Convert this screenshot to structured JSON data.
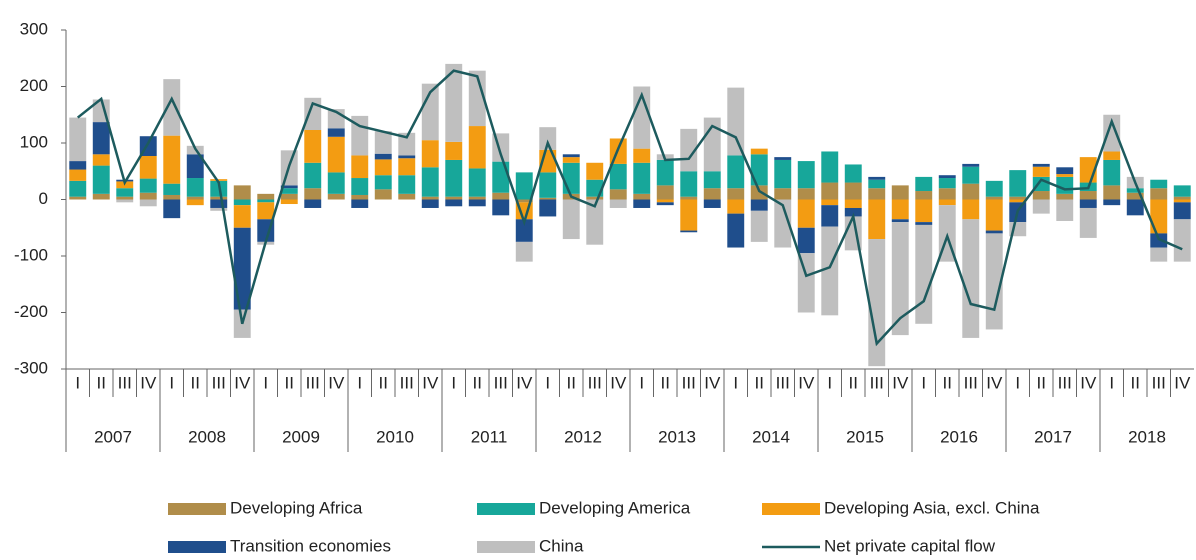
{
  "chart_data": {
    "type": "bar",
    "stacked": true,
    "categories": [
      "I",
      "II",
      "III",
      "IV",
      "I",
      "II",
      "III",
      "IV",
      "I",
      "II",
      "III",
      "IV",
      "I",
      "II",
      "III",
      "IV",
      "I",
      "II",
      "III",
      "IV",
      "I",
      "II",
      "III",
      "IV",
      "I",
      "II",
      "III",
      "IV",
      "I",
      "II",
      "III",
      "IV",
      "I",
      "II",
      "III",
      "IV",
      "I",
      "II",
      "III",
      "IV",
      "I",
      "II",
      "III",
      "IV",
      "I",
      "II",
      "III",
      "IV"
    ],
    "years": [
      "2007",
      "2008",
      "2009",
      "2010",
      "2011",
      "2012",
      "2013",
      "2014",
      "2015",
      "2016",
      "2017",
      "2018"
    ],
    "ylim": [
      -300,
      300
    ],
    "yticks": [
      -300,
      -200,
      -100,
      0,
      100,
      200,
      300
    ],
    "series": [
      {
        "name": "Developing Africa",
        "color": "#b08d4a",
        "values": [
          5,
          10,
          5,
          12,
          8,
          5,
          5,
          25,
          10,
          10,
          20,
          10,
          8,
          18,
          10,
          5,
          5,
          5,
          12,
          -5,
          3,
          10,
          5,
          18,
          10,
          25,
          5,
          20,
          20,
          25,
          20,
          20,
          30,
          30,
          20,
          25,
          15,
          20,
          28,
          5,
          5,
          15,
          10,
          15,
          25,
          12,
          20,
          5
        ]
      },
      {
        "name": "Developing America",
        "color": "#17a79a",
        "values": [
          28,
          50,
          15,
          25,
          20,
          33,
          28,
          -10,
          -5,
          10,
          45,
          38,
          30,
          25,
          33,
          52,
          65,
          50,
          55,
          48,
          45,
          55,
          30,
          45,
          55,
          45,
          45,
          30,
          58,
          55,
          50,
          48,
          55,
          32,
          15,
          0,
          25,
          18,
          30,
          28,
          47,
          25,
          30,
          15,
          45,
          8,
          15,
          20
        ]
      },
      {
        "name": "Developing Asia, excl. China",
        "color": "#f39c12",
        "values": [
          20,
          20,
          12,
          40,
          85,
          -10,
          3,
          -40,
          -30,
          -8,
          58,
          63,
          40,
          28,
          30,
          48,
          32,
          75,
          0,
          -30,
          40,
          10,
          30,
          45,
          25,
          -5,
          -55,
          0,
          -25,
          10,
          0,
          -50,
          -10,
          -15,
          -70,
          -35,
          -40,
          -10,
          -35,
          -55,
          -5,
          18,
          5,
          45,
          15,
          0,
          -60,
          -5
        ]
      },
      {
        "name": "Transition economies",
        "color": "#1f4e8c",
        "values": [
          15,
          57,
          3,
          35,
          -33,
          42,
          -15,
          -145,
          -40,
          5,
          -15,
          15,
          -15,
          10,
          5,
          -15,
          -12,
          -12,
          -28,
          -40,
          -30,
          5,
          0,
          0,
          -15,
          -5,
          -3,
          -15,
          -60,
          -20,
          5,
          -45,
          -38,
          -15,
          5,
          -5,
          -5,
          5,
          5,
          -5,
          -35,
          5,
          12,
          -15,
          -10,
          -28,
          -25,
          -30
        ]
      },
      {
        "name": "China",
        "color": "#bfbfbf",
        "values": [
          77,
          40,
          -5,
          -12,
          100,
          15,
          -5,
          -50,
          -5,
          62,
          57,
          34,
          70,
          40,
          40,
          100,
          138,
          98,
          50,
          -35,
          40,
          -70,
          -80,
          -15,
          110,
          10,
          75,
          95,
          120,
          -55,
          -85,
          -105,
          -157,
          -60,
          -225,
          -200,
          -175,
          -100,
          -210,
          -170,
          -25,
          -25,
          -38,
          -53,
          65,
          20,
          -25,
          -75
        ]
      },
      {
        "name": "Net private capital flow",
        "type": "line",
        "color": "#1d5b5e",
        "values": [
          145,
          178,
          30,
          100,
          178,
          90,
          30,
          -220,
          -75,
          60,
          170,
          155,
          130,
          120,
          110,
          190,
          228,
          218,
          80,
          -40,
          100,
          5,
          -12,
          90,
          185,
          70,
          72,
          130,
          110,
          15,
          -10,
          -135,
          -120,
          -30,
          -255,
          -210,
          -180,
          -65,
          -185,
          -195,
          -20,
          35,
          18,
          20,
          138,
          30,
          -70,
          -88
        ]
      }
    ]
  }
}
